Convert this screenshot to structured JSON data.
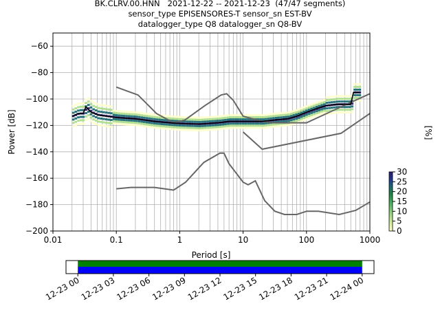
{
  "title_lines": [
    "BK.CLRV.00.HNN   2021-12-22 -- 2021-12-23  (47/47 segments)",
    "sensor_type EPISENSORES-T sensor_sn EST-BV",
    "datalogger_type Q8 datalogger_sn Q8-BV"
  ],
  "chart_data": [
    {
      "type": "heatmap",
      "xlabel": "Period [s]",
      "ylabel": "Power [dB]",
      "xscale": "log",
      "xlim": [
        0.01,
        1000
      ],
      "ylim": [
        -200,
        -50
      ],
      "xticks": [
        0.01,
        0.1,
        1,
        10,
        100,
        1000
      ],
      "xtick_labels": [
        "0.01",
        "0.1",
        "1",
        "10",
        "100",
        "1000"
      ],
      "yticks": [
        -200,
        -180,
        -160,
        -140,
        -120,
        -100,
        -80,
        -60
      ],
      "grid": true,
      "colorbar": {
        "label": "[%]",
        "range": [
          0,
          30
        ],
        "ticks": [
          0,
          5,
          10,
          15,
          20,
          25,
          30
        ]
      },
      "mean_curve": {
        "x": [
          0.02,
          0.025,
          0.03,
          0.033,
          0.04,
          0.05,
          0.07,
          0.1,
          0.2,
          0.4,
          0.7,
          1,
          2,
          4,
          6,
          10,
          20,
          30,
          50,
          70,
          100,
          150,
          200,
          300,
          400,
          500,
          550,
          600,
          700
        ],
        "y": [
          -113,
          -111,
          -111,
          -106,
          -110,
          -112,
          -113,
          -114,
          -115,
          -117,
          -118,
          -118.5,
          -119,
          -118,
          -117,
          -117,
          -117,
          -116,
          -115,
          -113,
          -110,
          -107,
          -105,
          -104,
          -104,
          -104,
          -95,
          -95,
          -95
        ]
      },
      "noise_models": [
        {
          "x": [
            0.1,
            0.22,
            0.43,
            0.8,
            1.2,
            2.5,
            4.5,
            5.5,
            7,
            10,
            20,
            30,
            100,
            350,
            1000
          ],
          "y": [
            -91,
            -97,
            -111,
            -118,
            -116,
            -105,
            -97,
            -96,
            -101,
            -113,
            -117,
            -118,
            -118,
            -106,
            -96
          ]
        },
        {
          "x": [
            0.1,
            0.17,
            0.4,
            0.8,
            1.24,
            2.4,
            4.3,
            5,
            6,
            10,
            12,
            15.6,
            21.9,
            31.6,
            45,
            70,
            101,
            154,
            328,
            600,
            1000
          ],
          "y": [
            -168,
            -167,
            -167,
            -169,
            -163,
            -148,
            -141,
            -141,
            -149,
            -163,
            -165,
            -162,
            -177,
            -185,
            -187.5,
            -187.5,
            -185,
            -185,
            -187.5,
            -184.4,
            -178
          ]
        },
        {
          "x": [
            10,
            20,
            350,
            1000
          ],
          "y": [
            -125,
            -138,
            -126,
            -111
          ]
        }
      ]
    },
    {
      "type": "bar",
      "name": "timeline",
      "xlim": [
        "2021-12-22 23:00",
        "2021-12-24 01:00"
      ],
      "xtick_labels": [
        "12-23 00",
        "12-23 03",
        "12-23 06",
        "12-23 09",
        "12-23 12",
        "12-23 15",
        "12-23 18",
        "12-23 21",
        "12-24 00"
      ],
      "coverage": [
        "2021-12-23 00:00",
        "2021-12-24 00:00"
      ],
      "bar_colors": [
        "#008000",
        "#0000ff"
      ]
    }
  ],
  "colors": {
    "mean": "#000000",
    "model": "#666666",
    "grid": "#b0b0b0",
    "colormap": [
      "#ffffcc",
      "#d9f0a3",
      "#addd8e",
      "#78c679",
      "#41ab5d",
      "#238443",
      "#1d6b73",
      "#253494",
      "#2c1d6e"
    ]
  }
}
